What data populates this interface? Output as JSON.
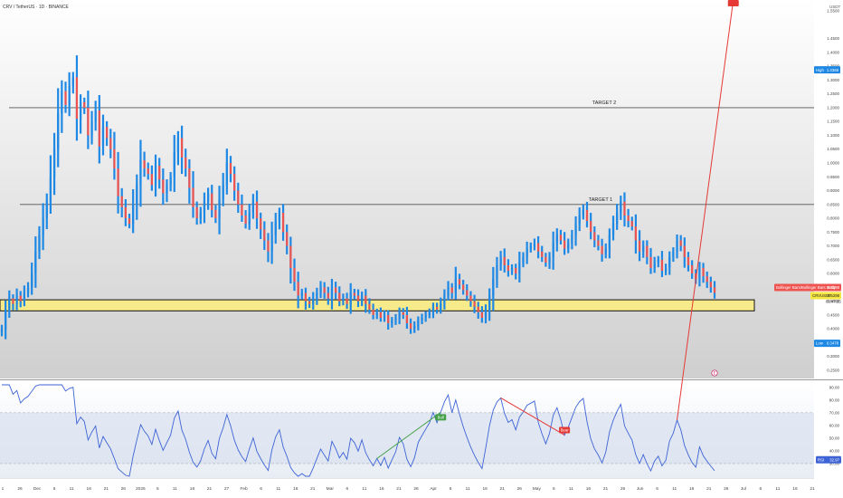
{
  "header": {
    "title": "CRV / TetherUS · 1D · BINANCE",
    "currency": "USDT"
  },
  "colors": {
    "bull": "#1e88e5",
    "bear": "#ef5350",
    "support_zone_fill": "#f7ea8a",
    "support_zone_stroke": "#111111",
    "rsi_line": "#3d63d6",
    "rsi_band": "#d9e1f0",
    "divergence_bear": "#e53935",
    "divergence_bull": "#43a047",
    "price_panel_bg_top": "#ffffff",
    "price_panel_bg_bottom": "#cfcfcf"
  },
  "chart_data": [
    {
      "type": "ohlc",
      "title": "CRV / TetherUS · 1D · BINANCE",
      "ylim": [
        0.24,
        1.57
      ],
      "y_tick_labels": [
        "1.5500",
        "1.4500",
        "1.4000",
        "1.3500",
        "1.3000",
        "1.2500",
        "1.2000",
        "1.1500",
        "1.1000",
        "1.0500",
        "1.0000",
        "0.9500",
        "0.9000",
        "0.8500",
        "0.8000",
        "0.7500",
        "0.7000",
        "0.6500",
        "0.6000",
        "0.5500",
        "0.5000",
        "0.4500",
        "0.4000",
        "0.3500",
        "0.3000",
        "0.2500"
      ],
      "x_tick_labels": [
        "1",
        "26",
        "Dec",
        "6",
        "11",
        "16",
        "21",
        "26",
        "2025",
        "6",
        "11",
        "16",
        "21",
        "27",
        "Feb",
        "6",
        "11",
        "16",
        "21",
        "Mar",
        "6",
        "11",
        "16",
        "21",
        "26",
        "Apr",
        "6",
        "11",
        "16",
        "21",
        "26",
        "May",
        "6",
        "11",
        "16",
        "21",
        "26",
        "Jun",
        "6",
        "11",
        "16",
        "21",
        "26",
        "Jul",
        "6",
        "11",
        "16",
        "21"
      ],
      "high": 1.3368,
      "high_label": "High",
      "low": 0.3478,
      "low_label": "Low",
      "current_price": 0.5298,
      "current_symbol": "CRVUSDT",
      "current_time_left": "02:47:25",
      "indicator_label": "Bollinger Bars/Bollinger Bars Body",
      "indicator_value": "0.5298",
      "levels": [
        {
          "name": "TARGET 2",
          "value": 1.2,
          "label": "TARGET 2"
        },
        {
          "name": "TARGET 1",
          "value": 0.85,
          "label": "TARGET 1"
        }
      ],
      "support_zone": [
        0.465,
        0.505
      ],
      "event_marker": "E",
      "closes": [
        0.4,
        0.47,
        0.51,
        0.49,
        0.52,
        0.5,
        0.53,
        0.55,
        0.6,
        0.68,
        0.74,
        0.8,
        0.86,
        0.95,
        1.05,
        1.18,
        1.26,
        1.21,
        1.28,
        1.31,
        1.16,
        1.22,
        1.2,
        1.1,
        1.15,
        1.19,
        1.06,
        1.13,
        1.09,
        1.05,
        0.98,
        0.88,
        0.84,
        0.8,
        0.78,
        0.85,
        0.92,
        1.01,
        0.98,
        0.96,
        0.92,
        0.99,
        0.94,
        0.89,
        0.92,
        0.95,
        1.04,
        1.09,
        1.02,
        0.98,
        0.91,
        0.84,
        0.8,
        0.82,
        0.86,
        0.89,
        0.83,
        0.8,
        0.87,
        0.92,
        1.0,
        0.96,
        0.9,
        0.85,
        0.81,
        0.78,
        0.82,
        0.86,
        0.8,
        0.76,
        0.72,
        0.68,
        0.74,
        0.79,
        0.82,
        0.75,
        0.7,
        0.62,
        0.57,
        0.52,
        0.53,
        0.5,
        0.49,
        0.51,
        0.53,
        0.55,
        0.53,
        0.51,
        0.55,
        0.53,
        0.5,
        0.51,
        0.49,
        0.53,
        0.52,
        0.5,
        0.52,
        0.49,
        0.47,
        0.45,
        0.46,
        0.44,
        0.45,
        0.42,
        0.43,
        0.44,
        0.46,
        0.45,
        0.42,
        0.4,
        0.41,
        0.43,
        0.44,
        0.45,
        0.46,
        0.48,
        0.47,
        0.49,
        0.52,
        0.55,
        0.53,
        0.58,
        0.56,
        0.54,
        0.52,
        0.5,
        0.48,
        0.46,
        0.44,
        0.47,
        0.52,
        0.58,
        0.63,
        0.66,
        0.63,
        0.61,
        0.62,
        0.6,
        0.64,
        0.66,
        0.69,
        0.7,
        0.71,
        0.68,
        0.66,
        0.64,
        0.66,
        0.71,
        0.74,
        0.72,
        0.69,
        0.71,
        0.74,
        0.78,
        0.81,
        0.83,
        0.79,
        0.75,
        0.72,
        0.7,
        0.67,
        0.69,
        0.74,
        0.78,
        0.82,
        0.86,
        0.81,
        0.79,
        0.77,
        0.72,
        0.68,
        0.7,
        0.66,
        0.62,
        0.64,
        0.65,
        0.61,
        0.62,
        0.66,
        0.68,
        0.72,
        0.7,
        0.66,
        0.63,
        0.6,
        0.58,
        0.62,
        0.59,
        0.57,
        0.55,
        0.53
      ],
      "rsi": {
        "label": "RSI",
        "value": 32.97,
        "ylim": [
          20,
          92
        ],
        "y_tick_labels": [
          "90.00",
          "80.00",
          "70.00",
          "60.00",
          "50.00",
          "40.00",
          "30.00"
        ],
        "band": [
          30,
          70
        ],
        "divergences": [
          {
            "label": "Bear",
            "kind": "bear"
          },
          {
            "label": "Bull",
            "kind": "bull"
          },
          {
            "label": "Bear",
            "kind": "bear"
          }
        ]
      }
    }
  ]
}
